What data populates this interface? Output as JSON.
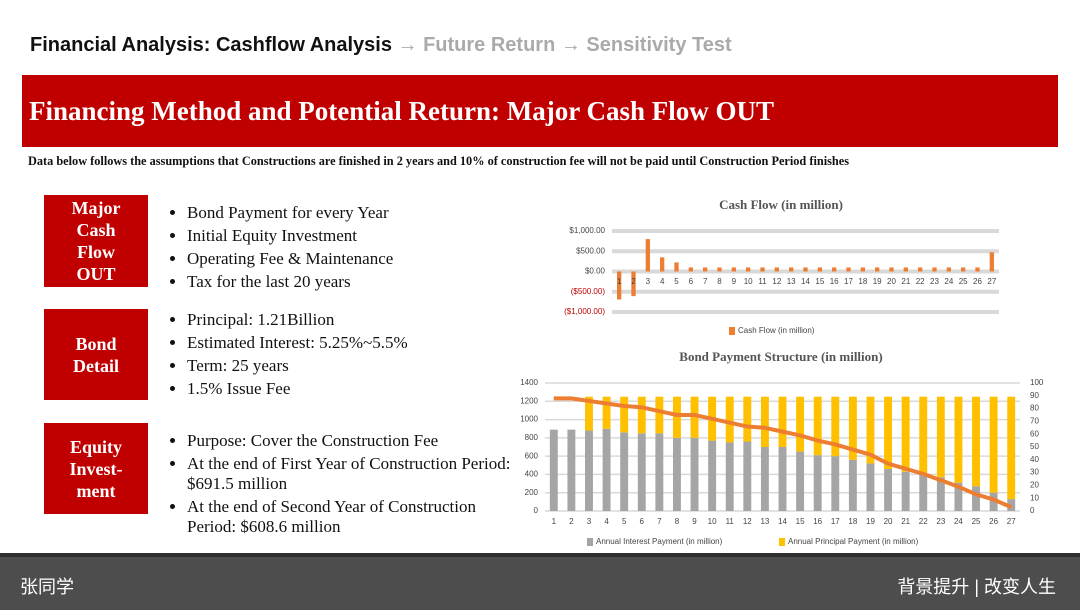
{
  "header": {
    "title": "Financial Analysis: Cashflow Analysis",
    "trail": "→ Future Return → Sensitivity Test"
  },
  "banner": "Financing Method and Potential Return: Major Cash Flow OUT",
  "note": "Data below follows the assumptions that Constructions are finished in 2 years and 10% of construction fee will not be paid until Construction Period finishes",
  "sections": [
    {
      "label": "Major Cash Flow OUT",
      "items": [
        "Bond Payment for every Year",
        "Initial Equity Investment",
        "Operating Fee & Maintenance",
        "Tax for the last 20 years"
      ]
    },
    {
      "label": "Bond Detail",
      "items": [
        "Principal: 1.21Billion",
        "Estimated Interest: 5.25%~5.5%",
        "Term: 25 years",
        "1.5% Issue Fee"
      ]
    },
    {
      "label": "Equity Invest-ment",
      "items": [
        "Purpose: Cover the Construction Fee",
        "At the end of First Year of Construction Period: $691.5 million",
        "At the end of Second Year of Construction Period: $608.6 million"
      ]
    }
  ],
  "chart_data": [
    {
      "type": "bar",
      "title": "Cash Flow (in million)",
      "categories": [
        "1",
        "2",
        "3",
        "4",
        "5",
        "6",
        "7",
        "8",
        "9",
        "10",
        "11",
        "12",
        "13",
        "14",
        "15",
        "16",
        "17",
        "18",
        "19",
        "20",
        "21",
        "22",
        "23",
        "24",
        "25",
        "26",
        "27"
      ],
      "series": [
        {
          "name": "Cash Flow (in million)",
          "color": "#ed7d31",
          "values": [
            -691.5,
            -608.6,
            800,
            350,
            225,
            100,
            100,
            100,
            100,
            100,
            100,
            100,
            100,
            100,
            100,
            100,
            100,
            100,
            100,
            100,
            100,
            100,
            100,
            100,
            100,
            100,
            475
          ]
        }
      ],
      "ylim": [
        -1000,
        1000
      ],
      "yticks": [
        {
          "value": 1000,
          "label": "$1,000.00"
        },
        {
          "value": 500,
          "label": "$500.00"
        },
        {
          "value": 0,
          "label": "$0.00"
        },
        {
          "value": -500,
          "label": "($500.00)"
        },
        {
          "value": -1000,
          "label": "($1,000.00)"
        }
      ],
      "grid": true
    },
    {
      "type": "bar",
      "title": "Bond Payment Structure (in million)",
      "stacked": true,
      "categories": [
        "1",
        "2",
        "3",
        "4",
        "5",
        "6",
        "7",
        "8",
        "9",
        "10",
        "11",
        "12",
        "13",
        "14",
        "15",
        "16",
        "17",
        "18",
        "19",
        "20",
        "21",
        "22",
        "23",
        "24",
        "25",
        "26",
        "27"
      ],
      "series": [
        {
          "name": "Annual Interest Payment (in million)",
          "color": "#a5a5a5",
          "values": [
            890,
            890,
            880,
            900,
            860,
            850,
            850,
            800,
            800,
            770,
            750,
            760,
            700,
            700,
            650,
            610,
            600,
            560,
            520,
            460,
            430,
            400,
            370,
            310,
            270,
            200,
            130
          ]
        },
        {
          "name": "Annual Principal Payment (in million)",
          "color": "#ffc000",
          "values": [
            0,
            0,
            370,
            350,
            390,
            400,
            400,
            450,
            450,
            480,
            500,
            490,
            550,
            550,
            600,
            640,
            650,
            690,
            730,
            790,
            820,
            850,
            880,
            940,
            980,
            1050,
            1120
          ]
        },
        {
          "type": "line",
          "axis": "y2",
          "color": "#ed7d31",
          "values": [
            88,
            88,
            86,
            84,
            82,
            81,
            78,
            75,
            75,
            72,
            69,
            66,
            65,
            62,
            59,
            55,
            52,
            48,
            44,
            37,
            33,
            29,
            24,
            19,
            13,
            9,
            3
          ]
        }
      ],
      "ylim": [
        0,
        1400
      ],
      "yticks": [
        0,
        200,
        400,
        600,
        800,
        1000,
        1200,
        1400
      ],
      "y2lim": [
        0,
        100
      ],
      "y2ticks": [
        0,
        10,
        20,
        30,
        40,
        50,
        60,
        70,
        80,
        90,
        100
      ],
      "grid": true
    }
  ],
  "footer": {
    "left": "张同学",
    "right": "背景提升 | 改变人生"
  }
}
